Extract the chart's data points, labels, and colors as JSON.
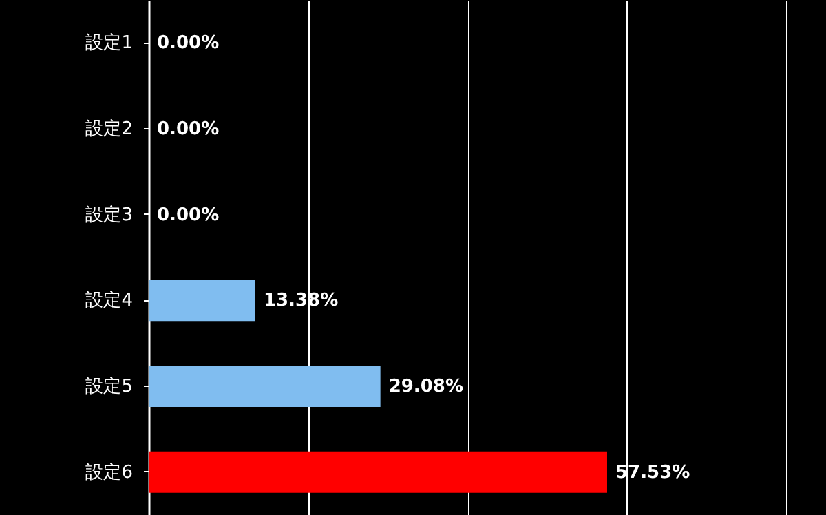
{
  "chart_data": {
    "type": "bar",
    "orientation": "horizontal",
    "categories": [
      "設定1",
      "設定2",
      "設定3",
      "設定4",
      "設定5",
      "設定6"
    ],
    "values": [
      0,
      0,
      0,
      13.38,
      29.08,
      57.53
    ],
    "colors": [
      "#80bdf0",
      "#80bdf0",
      "#80bdf0",
      "#80bdf0",
      "#80bdf0",
      "#ff0000"
    ],
    "value_labels": [
      "0.00%",
      "0.00%",
      "0.00%",
      "13.38%",
      "29.08%",
      "57.53%"
    ],
    "xlim": [
      0,
      85
    ],
    "xticks": [
      {
        "value": 0,
        "label": null
      },
      {
        "value": 20,
        "label": null
      },
      {
        "value": 40,
        "label": null
      },
      {
        "value": 60,
        "label": null
      },
      {
        "value": 80,
        "label": null
      }
    ],
    "grid": "x",
    "tick_labels": "y"
  }
}
